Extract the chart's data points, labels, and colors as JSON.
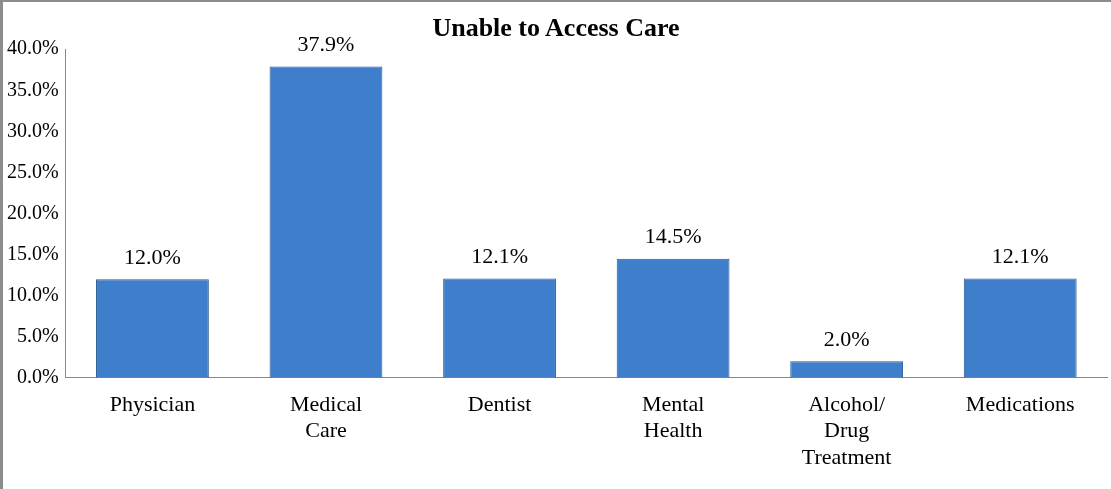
{
  "chart_data": {
    "type": "bar",
    "title": "Unable to Access Care",
    "categories": [
      "Physician",
      "Medical Care",
      "Dentist",
      "Mental Health",
      "Alcohol/ Drug Treatment",
      "Medications"
    ],
    "values": [
      12.0,
      37.9,
      12.1,
      14.5,
      2.0,
      12.1
    ],
    "value_labels": [
      "12.0%",
      "37.9%",
      "12.1%",
      "14.5%",
      "2.0%",
      "12.1%"
    ],
    "color": "#3f7ecb",
    "ylim": [
      0,
      40
    ],
    "yticks": [
      {
        "value": 0,
        "label": "0.0%"
      },
      {
        "value": 5,
        "label": "5.0%"
      },
      {
        "value": 10,
        "label": "10.0%"
      },
      {
        "value": 15,
        "label": "15.0%"
      },
      {
        "value": 20,
        "label": "20.0%"
      },
      {
        "value": 25,
        "label": "25.0%"
      },
      {
        "value": 30,
        "label": "30.0%"
      },
      {
        "value": 35,
        "label": "35.0%"
      },
      {
        "value": 40,
        "label": "40.0%"
      }
    ],
    "grid": false,
    "legend": false
  }
}
